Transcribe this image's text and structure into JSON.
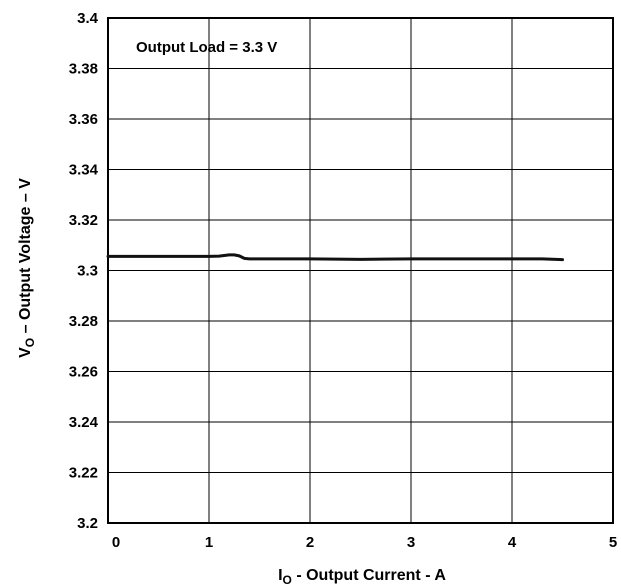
{
  "chart_data": {
    "type": "line",
    "annotation": "Output Load = 3.3 V",
    "xlabel": {
      "main": "I",
      "sub": "O",
      "rest": " - Output Current - A"
    },
    "ylabel": {
      "main": "V",
      "sub": "O",
      "rest": " – Output Voltage – V"
    },
    "xlim": [
      0,
      5
    ],
    "ylim": [
      3.2,
      3.4
    ],
    "x_ticks": [
      "0",
      "1",
      "2",
      "3",
      "4",
      "5"
    ],
    "y_ticks": [
      "3.4",
      "3.38",
      "3.36",
      "3.34",
      "3.32",
      "3.3",
      "3.28",
      "3.26",
      "3.24",
      "3.22",
      "3.2"
    ],
    "grid": true,
    "series": [
      {
        "x": [
          0,
          0.5,
          1.0,
          1.1,
          1.2,
          1.25,
          1.3,
          1.35,
          1.4,
          1.6,
          2.0,
          2.5,
          3.0,
          3.5,
          4.0,
          4.3,
          4.5
        ],
        "y": [
          3.3056,
          3.3056,
          3.3056,
          3.3057,
          3.3062,
          3.3062,
          3.3058,
          3.3048,
          3.3046,
          3.3046,
          3.3046,
          3.3044,
          3.3046,
          3.3046,
          3.3046,
          3.3046,
          3.3043
        ]
      }
    ]
  }
}
